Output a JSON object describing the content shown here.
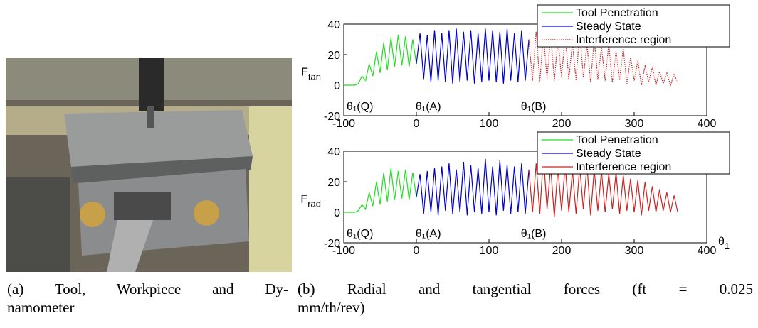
{
  "chart_data": [
    {
      "type": "line",
      "y_label": "F",
      "y_label_sub": "tan",
      "xlim": [
        -100,
        400
      ],
      "xticks": [
        -100,
        0,
        100,
        200,
        300,
        400
      ],
      "ylim": [
        -20,
        40
      ],
      "yticks": [
        -20,
        0,
        20,
        40
      ],
      "annotations": [
        {
          "text": "θ₁(Q)",
          "x": -100
        },
        {
          "text": "θ₁(A)",
          "x": -5
        },
        {
          "text": "θ₁(B)",
          "x": 140
        }
      ],
      "series": [
        {
          "name": "Tool Penetration",
          "color": "#22dd22",
          "style": "solid",
          "x": [
            -100,
            -95,
            -90,
            -85,
            -80,
            -75,
            -70,
            -65,
            -60,
            -55,
            -50,
            -45,
            -40,
            -35,
            -30,
            -25,
            -20,
            -15,
            -10,
            -5,
            0
          ],
          "values": [
            0,
            0,
            0,
            0,
            1,
            6,
            3,
            14,
            6,
            22,
            8,
            28,
            10,
            31,
            12,
            33,
            13,
            32,
            12,
            30,
            14
          ]
        },
        {
          "name": "Steady State",
          "color": "#0000cc",
          "style": "solid",
          "x": [
            0,
            5,
            10,
            15,
            20,
            25,
            30,
            35,
            40,
            45,
            50,
            55,
            60,
            65,
            70,
            75,
            80,
            85,
            90,
            95,
            100,
            105,
            110,
            115,
            120,
            125,
            130,
            135,
            140,
            145,
            150,
            155
          ],
          "values": [
            14,
            34,
            4,
            33,
            2,
            36,
            3,
            34,
            2,
            36,
            1,
            37,
            2,
            35,
            3,
            36,
            1,
            34,
            2,
            37,
            3,
            36,
            2,
            35,
            1,
            37,
            3,
            34,
            2,
            36,
            3,
            30
          ]
        },
        {
          "name": "Interference region",
          "color": "#cc2222",
          "style": "dotted",
          "x": [
            155,
            160,
            165,
            170,
            175,
            180,
            185,
            190,
            195,
            200,
            205,
            210,
            215,
            220,
            225,
            230,
            235,
            240,
            245,
            250,
            255,
            260,
            265,
            270,
            275,
            280,
            285,
            290,
            295,
            300,
            305,
            310,
            315,
            320,
            325,
            330,
            335,
            340,
            345,
            350,
            355,
            360
          ],
          "values": [
            30,
            3,
            35,
            2,
            33,
            4,
            34,
            3,
            30,
            5,
            33,
            4,
            28,
            3,
            36,
            5,
            27,
            2,
            30,
            4,
            25,
            3,
            27,
            2,
            22,
            4,
            24,
            1,
            18,
            3,
            16,
            0,
            13,
            2,
            12,
            0,
            9,
            1,
            8,
            0,
            7,
            2
          ]
        }
      ]
    },
    {
      "type": "line",
      "y_label": "F",
      "y_label_sub": "rad",
      "x_label": "θ",
      "x_label_sub": "1",
      "xlim": [
        -100,
        400
      ],
      "xticks": [
        -100,
        0,
        100,
        200,
        300,
        400
      ],
      "ylim": [
        -20,
        40
      ],
      "yticks": [
        -20,
        0,
        20,
        40
      ],
      "annotations": [
        {
          "text": "θ₁(Q)",
          "x": -100
        },
        {
          "text": "θ₁(A)",
          "x": -5
        },
        {
          "text": "θ₁(B)",
          "x": 140
        }
      ],
      "series": [
        {
          "name": "Tool Penetration",
          "color": "#22dd22",
          "style": "solid",
          "x": [
            -100,
            -95,
            -90,
            -85,
            -80,
            -75,
            -70,
            -65,
            -60,
            -55,
            -50,
            -45,
            -40,
            -35,
            -30,
            -25,
            -20,
            -15,
            -10,
            -5,
            0
          ],
          "values": [
            0,
            0,
            0,
            0,
            1,
            5,
            2,
            13,
            4,
            20,
            5,
            26,
            7,
            29,
            8,
            27,
            9,
            28,
            8,
            26,
            10
          ]
        },
        {
          "name": "Steady State",
          "color": "#0000cc",
          "style": "solid",
          "x": [
            0,
            5,
            10,
            15,
            20,
            25,
            30,
            35,
            40,
            45,
            50,
            55,
            60,
            65,
            70,
            75,
            80,
            85,
            90,
            95,
            100,
            105,
            110,
            115,
            120,
            125,
            130,
            135,
            140,
            145,
            150,
            155
          ],
          "values": [
            10,
            25,
            -1,
            27,
            0,
            29,
            -2,
            30,
            1,
            32,
            -1,
            28,
            0,
            33,
            -2,
            31,
            0,
            29,
            -1,
            35,
            0,
            30,
            -2,
            34,
            1,
            31,
            -1,
            30,
            0,
            32,
            -1,
            28
          ]
        },
        {
          "name": "Interference region",
          "color": "#cc2222",
          "style": "solid",
          "x": [
            155,
            160,
            165,
            170,
            175,
            180,
            185,
            190,
            195,
            200,
            205,
            210,
            215,
            220,
            225,
            230,
            235,
            240,
            245,
            250,
            255,
            260,
            265,
            270,
            275,
            280,
            285,
            290,
            295,
            300,
            305,
            310,
            315,
            320,
            325,
            330,
            335,
            340,
            345,
            350,
            355,
            360
          ],
          "values": [
            28,
            0,
            32,
            -1,
            37,
            2,
            30,
            -3,
            29,
            1,
            31,
            0,
            27,
            -1,
            30,
            2,
            31,
            -2,
            28,
            1,
            27,
            0,
            25,
            2,
            26,
            -1,
            24,
            1,
            22,
            0,
            21,
            -2,
            20,
            1,
            17,
            0,
            15,
            1,
            13,
            0,
            11,
            0
          ]
        }
      ]
    }
  ],
  "captions": {
    "a": [
      "(a) Tool, Workpiece and Dy-",
      "namometer"
    ],
    "b": [
      "(b) Radial and tangential forces (ft = 0.025",
      "mm/th/rev)"
    ]
  }
}
